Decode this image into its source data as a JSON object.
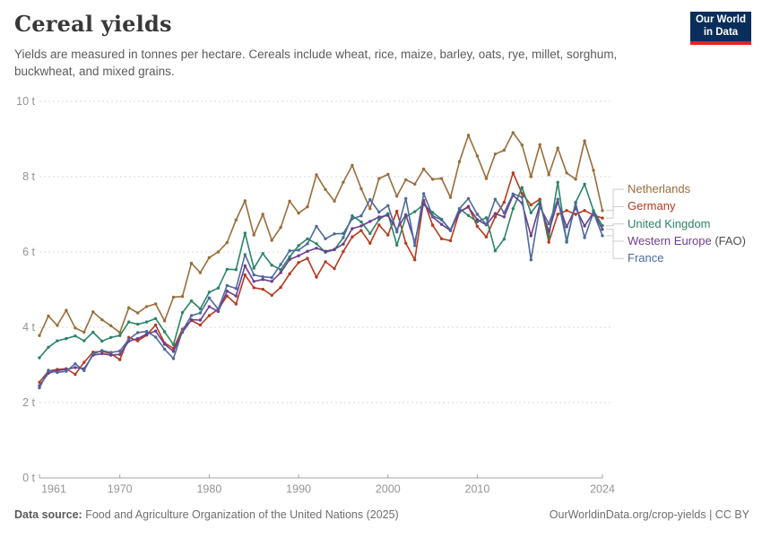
{
  "header": {
    "title": "Cereal yields",
    "subtitle": "Yields are measured in tonnes per hectare. Cereals include wheat, rice, maize, barley, oats, rye, millet, sorghum, buckwheat, and mixed grains.",
    "logo": {
      "line1": "Our World",
      "line2": "in Data",
      "bg_color": "#0A2E5C",
      "accent_color": "#E0261C"
    }
  },
  "chart_data": {
    "type": "line",
    "title": "Cereal yields",
    "unit": "tonnes per hectare",
    "xlim": [
      1961,
      2024
    ],
    "ylim": [
      0,
      10
    ],
    "grid": "horizontal-dashed",
    "legend_position": "right-edge-labels",
    "x_ticks": [
      1961,
      1970,
      1980,
      1990,
      2000,
      2010,
      2024
    ],
    "x_tick_labels": [
      "1961",
      "1970",
      "1980",
      "1990",
      "2000",
      "2010",
      "2024"
    ],
    "y_ticks": [
      0,
      2,
      4,
      6,
      8,
      10
    ],
    "y_tick_labels": [
      "0 t",
      "2 t",
      "4 t",
      "6 t",
      "8 t",
      "10 t"
    ],
    "x": [
      1961,
      1962,
      1963,
      1964,
      1965,
      1966,
      1967,
      1968,
      1969,
      1970,
      1971,
      1972,
      1973,
      1974,
      1975,
      1976,
      1977,
      1978,
      1979,
      1980,
      1981,
      1982,
      1983,
      1984,
      1985,
      1986,
      1987,
      1988,
      1989,
      1990,
      1991,
      1992,
      1993,
      1994,
      1995,
      1996,
      1997,
      1998,
      1999,
      2000,
      2001,
      2002,
      2003,
      2004,
      2005,
      2006,
      2007,
      2008,
      2009,
      2010,
      2011,
      2012,
      2013,
      2014,
      2015,
      2016,
      2017,
      2018,
      2019,
      2020,
      2021,
      2022,
      2023,
      2024
    ],
    "series": [
      {
        "name": "Netherlands",
        "suffix": "",
        "color": "#996D39",
        "values": [
          3.78,
          4.3,
          4.05,
          4.45,
          3.98,
          3.87,
          4.41,
          4.2,
          4.04,
          3.86,
          4.52,
          4.38,
          4.55,
          4.62,
          4.17,
          4.8,
          4.82,
          5.7,
          5.45,
          5.85,
          6.0,
          6.25,
          6.85,
          7.36,
          6.45,
          7.0,
          6.31,
          6.65,
          7.35,
          7.03,
          7.2,
          8.05,
          7.66,
          7.35,
          7.85,
          8.3,
          7.68,
          7.15,
          7.95,
          8.06,
          7.48,
          7.92,
          7.8,
          8.2,
          7.93,
          7.95,
          7.45,
          8.4,
          9.1,
          8.55,
          7.95,
          8.6,
          8.7,
          9.17,
          8.84,
          8.0,
          8.85,
          8.05,
          8.76,
          8.1,
          7.93,
          8.95,
          8.17,
          7.1
        ]
      },
      {
        "name": "Germany",
        "suffix": "",
        "color": "#B63A20",
        "values": [
          2.54,
          2.84,
          2.88,
          2.9,
          2.75,
          3.07,
          3.34,
          3.36,
          3.3,
          3.14,
          3.73,
          3.64,
          3.79,
          4.06,
          3.58,
          3.44,
          3.95,
          4.18,
          4.06,
          4.31,
          4.48,
          4.83,
          4.62,
          5.39,
          5.05,
          5.01,
          4.85,
          5.06,
          5.42,
          5.72,
          5.83,
          5.33,
          5.74,
          5.56,
          6.01,
          6.4,
          6.57,
          6.23,
          6.72,
          6.45,
          7.08,
          6.23,
          5.79,
          7.37,
          6.71,
          6.35,
          6.3,
          7.06,
          7.21,
          6.68,
          6.4,
          6.93,
          7.32,
          8.1,
          7.55,
          7.25,
          7.4,
          6.26,
          7.0,
          7.1,
          7.0,
          7.1,
          6.98,
          6.9
        ]
      },
      {
        "name": "United Kingdom",
        "suffix": "",
        "color": "#2C8465",
        "values": [
          3.19,
          3.47,
          3.64,
          3.7,
          3.77,
          3.64,
          3.87,
          3.63,
          3.73,
          3.78,
          4.14,
          4.08,
          4.14,
          4.23,
          3.88,
          3.54,
          4.39,
          4.7,
          4.49,
          4.93,
          5.04,
          5.54,
          5.53,
          6.5,
          5.57,
          5.96,
          5.65,
          5.53,
          5.87,
          6.17,
          6.35,
          6.22,
          5.99,
          6.06,
          6.38,
          6.96,
          6.8,
          6.49,
          6.86,
          7.02,
          6.18,
          6.93,
          7.07,
          7.26,
          7.05,
          6.87,
          6.57,
          7.15,
          6.97,
          6.8,
          6.91,
          6.03,
          6.34,
          7.15,
          7.71,
          7.04,
          7.34,
          6.4,
          7.85,
          6.26,
          7.32,
          7.8,
          7.1,
          6.7
        ]
      },
      {
        "name": "Western Europe",
        "suffix": " (FAO)",
        "color": "#6D3E91",
        "values": [
          2.45,
          2.78,
          2.85,
          2.88,
          2.93,
          2.9,
          3.26,
          3.3,
          3.26,
          3.28,
          3.63,
          3.7,
          3.82,
          3.9,
          3.55,
          3.36,
          3.87,
          4.2,
          4.19,
          4.55,
          4.42,
          4.96,
          4.83,
          5.63,
          5.22,
          5.27,
          5.22,
          5.45,
          5.8,
          5.9,
          6.02,
          6.1,
          6.02,
          6.07,
          6.21,
          6.62,
          6.69,
          6.81,
          6.93,
          6.97,
          6.59,
          6.99,
          6.26,
          7.32,
          6.93,
          6.73,
          6.57,
          7.07,
          7.19,
          6.86,
          6.72,
          7.02,
          6.93,
          7.5,
          7.3,
          6.43,
          7.26,
          6.55,
          7.33,
          6.67,
          7.17,
          6.69,
          7.05,
          6.6
        ]
      },
      {
        "name": "France",
        "suffix": "",
        "color": "#4C6A9C",
        "values": [
          2.39,
          2.86,
          2.8,
          2.83,
          3.03,
          2.85,
          3.29,
          3.38,
          3.33,
          3.37,
          3.68,
          3.86,
          3.89,
          3.74,
          3.42,
          3.17,
          3.91,
          4.31,
          4.38,
          4.78,
          4.48,
          5.11,
          5.03,
          5.93,
          5.39,
          5.34,
          5.32,
          5.67,
          6.03,
          6.05,
          6.22,
          6.68,
          6.35,
          6.48,
          6.49,
          6.88,
          6.96,
          7.39,
          7.06,
          7.23,
          6.53,
          7.42,
          6.17,
          7.55,
          6.96,
          6.85,
          6.59,
          7.15,
          7.42,
          7.0,
          6.73,
          7.4,
          7.04,
          7.54,
          7.46,
          5.79,
          7.2,
          6.75,
          7.4,
          6.3,
          7.3,
          6.38,
          7.05,
          6.43
        ]
      }
    ]
  },
  "footer": {
    "source_label": "Data source:",
    "source_text": " Food and Agriculture Organization of the United Nations (2025)",
    "credit": "OurWorldinData.org/crop-yields | CC BY"
  }
}
